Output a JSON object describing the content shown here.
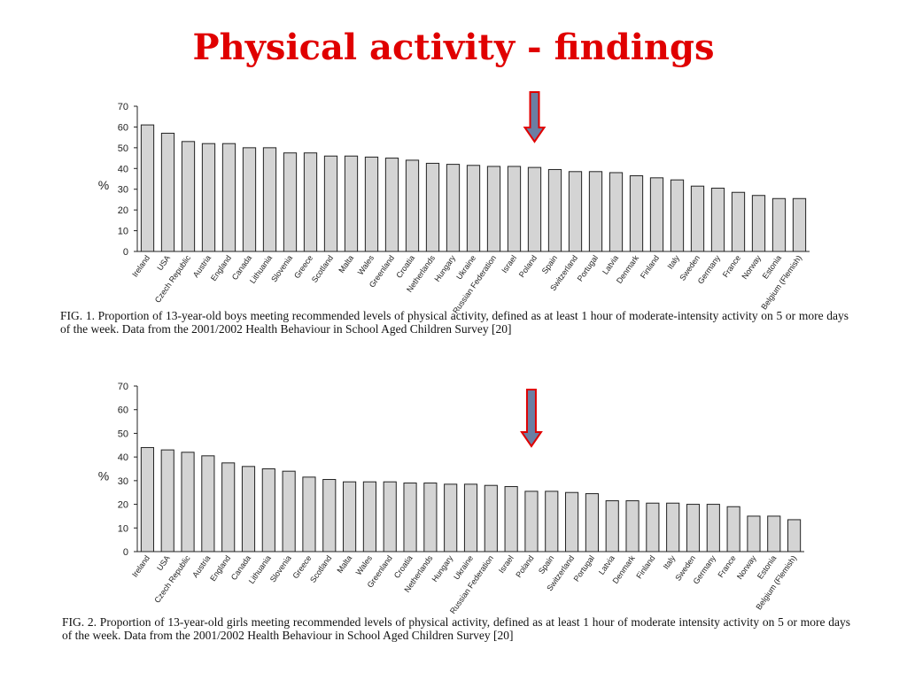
{
  "slide": {
    "title": "Physical activity - findings",
    "arrow_color": "#e00000",
    "arrow_fill": "#6b7fa3"
  },
  "chart_data": [
    {
      "type": "bar",
      "ylabel": "%",
      "ylim": [
        0,
        70
      ],
      "yticks": [
        0,
        10,
        20,
        30,
        40,
        50,
        60,
        70
      ],
      "bar_color": "#d4d4d4",
      "highlight_category": "Poland",
      "categories": [
        "Ireland",
        "USA",
        "Czech Republic",
        "Austria",
        "England",
        "Canada",
        "Lithuania",
        "Slovenia",
        "Greece",
        "Scotland",
        "Malta",
        "Wales",
        "Greenland",
        "Croatia",
        "Netherlands",
        "Hungary",
        "Ukraine",
        "Russian Federation",
        "Israel",
        "Poland",
        "Spain",
        "Switzerland",
        "Portugal",
        "Latvia",
        "Denmark",
        "Finland",
        "Italy",
        "Sweden",
        "Germany",
        "France",
        "Norway",
        "Estonia",
        "Belgium (Flemish)"
      ],
      "values": [
        61,
        57,
        53,
        52,
        52,
        50,
        50,
        47.5,
        47.5,
        46,
        46,
        45.5,
        45,
        44,
        42.5,
        42,
        41.5,
        41,
        41,
        40.5,
        39.5,
        38.5,
        38.5,
        38,
        36.5,
        35.5,
        34.5,
        31.5,
        30.5,
        28.5,
        27,
        25.5,
        25.5
      ],
      "caption": "FIG. 1. Proportion of 13-year-old boys meeting recommended levels of physical activity, defined as at least 1 hour of moderate-intensity activity on 5 or more days of the week. Data from the 2001/2002 Health Behaviour in School Aged Children Survey [20]"
    },
    {
      "type": "bar",
      "ylabel": "%",
      "ylim": [
        0,
        70
      ],
      "yticks": [
        0,
        10,
        20,
        30,
        40,
        50,
        60,
        70
      ],
      "bar_color": "#d4d4d4",
      "highlight_category": "Poland",
      "categories": [
        "Ireland",
        "USA",
        "Czech Republic",
        "Austria",
        "England",
        "Canada",
        "Lithuania",
        "Slovenia",
        "Greece",
        "Scotland",
        "Malta",
        "Wales",
        "Greenland",
        "Croatia",
        "Netherlands",
        "Hungary",
        "Ukraine",
        "Russian Federation",
        "Israel",
        "Poland",
        "Spain",
        "Switzerland",
        "Portugal",
        "Latvia",
        "Denmark",
        "Finland",
        "Italy",
        "Sweden",
        "Germany",
        "France",
        "Norway",
        "Estonia",
        "Belgium (Flemish)"
      ],
      "values": [
        44,
        43,
        42,
        40.5,
        37.5,
        36,
        35,
        34,
        31.5,
        30.5,
        29.5,
        29.5,
        29.5,
        29,
        29,
        28.5,
        28.5,
        28,
        27.5,
        25.5,
        25.5,
        25,
        24.5,
        21.5,
        21.5,
        20.5,
        20.5,
        20,
        20,
        19,
        15,
        15,
        13.5
      ],
      "caption": "FIG. 2. Proportion of 13-year-old girls meeting recommended levels of physical activity, defined as at least 1 hour of moderate intensity activity on 5 or more days of the week. Data from the 2001/2002 Health Behaviour in School Aged Children Survey [20]"
    }
  ]
}
